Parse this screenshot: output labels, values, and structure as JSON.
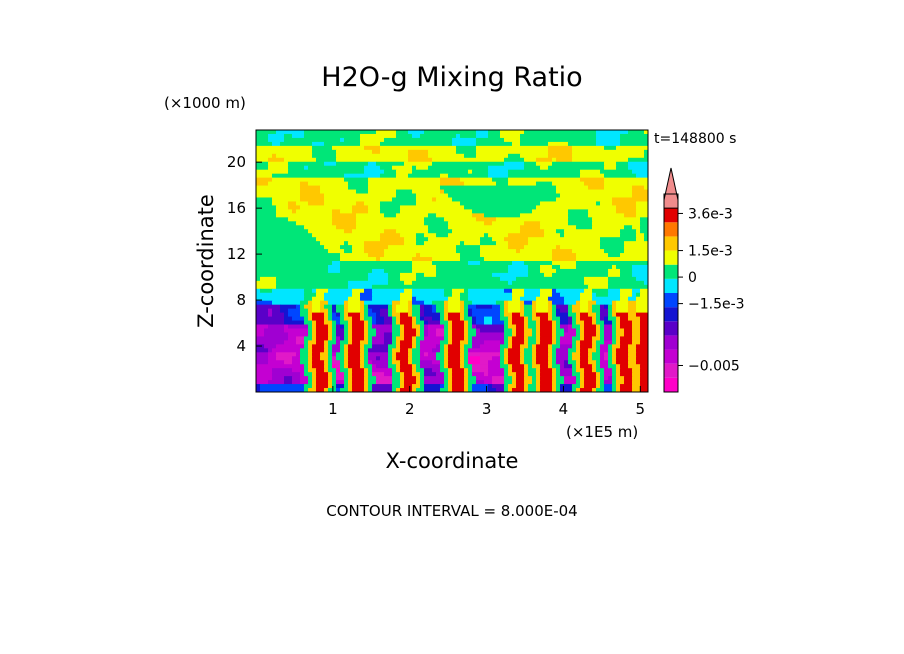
{
  "chart_data": {
    "type": "heatmap",
    "title": "H2O-g Mixing Ratio",
    "xlabel": "X-coordinate",
    "ylabel": "Z-coordinate",
    "x_unit": "(×1E5 m)",
    "y_unit": "(×1000 m)",
    "time_label": "t=148800 s",
    "footer": "CONTOUR INTERVAL = 8.000E-04",
    "x_ticks": [
      "1",
      "2",
      "3",
      "4",
      "5"
    ],
    "x_tick_values": [
      1,
      2,
      3,
      4,
      5
    ],
    "y_ticks": [
      "4",
      "8",
      "12",
      "16",
      "20"
    ],
    "y_tick_values": [
      4,
      8,
      12,
      16,
      20
    ],
    "xlim": [
      0.0,
      5.1
    ],
    "ylim": [
      0.0,
      22.8
    ],
    "colorbar": {
      "levels": [
        {
          "value": -0.0061,
          "color": "#ff00c8"
        },
        {
          "value": -0.0053,
          "color": "#e119c8"
        },
        {
          "value": -0.0045,
          "color": "#c400d2"
        },
        {
          "value": -0.0037,
          "color": "#a000d2"
        },
        {
          "value": -0.0029,
          "color": "#5a00c8"
        },
        {
          "value": -0.0021,
          "color": "#1414d2"
        },
        {
          "value": -0.0013,
          "color": "#0046ff"
        },
        {
          "value": -0.0005,
          "color": "#00e6ff"
        },
        {
          "value": 0.0003,
          "color": "#00e678"
        },
        {
          "value": 0.0011,
          "color": "#f0ff00"
        },
        {
          "value": 0.0019,
          "color": "#ffc800"
        },
        {
          "value": 0.0027,
          "color": "#ff7800"
        },
        {
          "value": 0.0035,
          "color": "#e10000"
        },
        {
          "value": 0.0043,
          "color": "#f08c8c"
        }
      ],
      "tick_labels": [
        {
          "label": "3.6e-3",
          "value": 0.0036
        },
        {
          "label": "1.5e-3",
          "value": 0.0015
        },
        {
          "label": "0",
          "value": 0.0
        },
        {
          "label": "−1.5e-3",
          "value": -0.0015
        },
        {
          "label": "−0.005",
          "value": -0.005
        }
      ]
    }
  }
}
